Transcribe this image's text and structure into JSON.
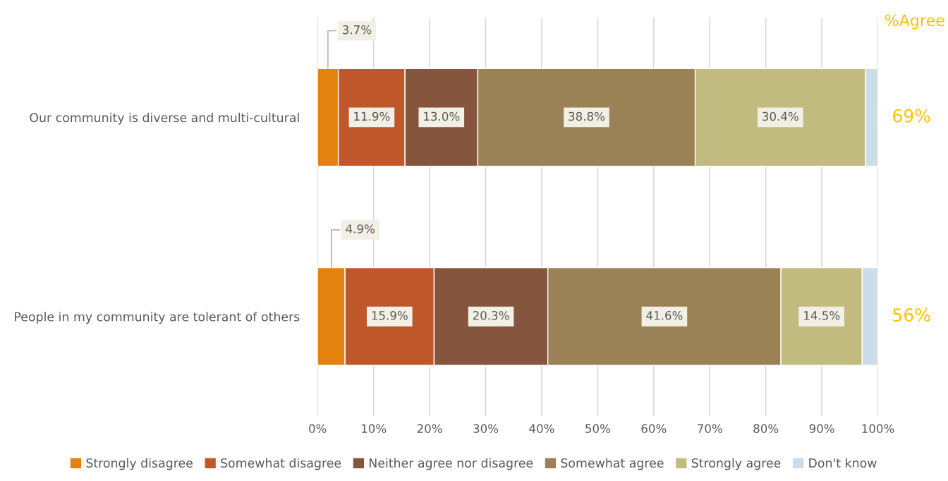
{
  "chart_data": {
    "type": "bar",
    "orientation": "horizontal",
    "stacked": true,
    "categories": [
      "Our community is diverse and multi-cultural",
      "People in my community are tolerant of others"
    ],
    "series": [
      {
        "name": "Strongly disagree",
        "color": "#e3820f",
        "values": [
          3.7,
          4.9
        ],
        "value_labels": [
          "3.7%",
          "4.9%"
        ]
      },
      {
        "name": "Somewhat disagree",
        "color": "#bf572b",
        "values": [
          11.9,
          15.9
        ],
        "value_labels": [
          "11.9%",
          "15.9%"
        ]
      },
      {
        "name": "Neither agree nor disagree",
        "color": "#86553d",
        "values": [
          13.0,
          20.3
        ],
        "value_labels": [
          "13.0%",
          "20.3%"
        ]
      },
      {
        "name": "Somewhat agree",
        "color": "#9b8156",
        "values": [
          38.8,
          41.6
        ],
        "value_labels": [
          "38.8%",
          "41.6%"
        ]
      },
      {
        "name": "Strongly agree",
        "color": "#c2bb80",
        "values": [
          30.4,
          14.5
        ],
        "value_labels": [
          "30.4%",
          "14.5%"
        ]
      },
      {
        "name": "Don't know",
        "color": "#ccdce8",
        "values": [
          2.2,
          2.8
        ],
        "value_labels": [
          null,
          null
        ]
      }
    ],
    "xlim": [
      0,
      100
    ],
    "xticks": [
      {
        "value": 0,
        "label": "0%"
      },
      {
        "value": 10,
        "label": "10%"
      },
      {
        "value": 20,
        "label": "20%"
      },
      {
        "value": 30,
        "label": "30%"
      },
      {
        "value": 40,
        "label": "40%"
      },
      {
        "value": 50,
        "label": "50%"
      },
      {
        "value": 60,
        "label": "60%"
      },
      {
        "value": 70,
        "label": "70%"
      },
      {
        "value": 80,
        "label": "80%"
      },
      {
        "value": 90,
        "label": "90%"
      },
      {
        "value": 100,
        "label": "100%"
      }
    ],
    "grid": "x",
    "legend": "bottom",
    "annotations": [
      "%Agree",
      "69%",
      "56%"
    ]
  }
}
